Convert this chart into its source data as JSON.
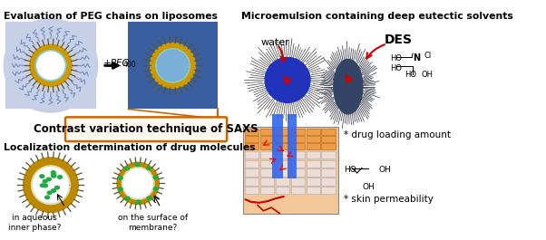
{
  "top_left_title": "Evaluation of PEG chains on liposomes",
  "top_right_title": "Microemulsion containing deep eutectic solvents",
  "bottom_left_title": "Localization determination of drug molecules",
  "center_box_text": "Contrast variation technique of SAXS",
  "arrow_label": "+PEG",
  "arrow_sub": "400",
  "water_label": "water",
  "des_label": "DES",
  "drug_loading_label": "* drug loading amount",
  "skin_perm_label": "* skin permeability",
  "aqueous_label": "in aqueous\ninner phase?",
  "membrane_label": "on the surface of\nmembrane?",
  "bg_color": "#ffffff",
  "liposome1_bg": "#c8d0e8",
  "liposome2_bg": "#3a5fa0",
  "box_border": "#cc6600",
  "box_fill": "#fff8f0",
  "green_drug": "#22aa44",
  "gold_membrane": "#cc9900",
  "teal_inner": "#88cccc",
  "text_color": "#000000",
  "red_color": "#cc0000",
  "figsize": [
    6.02,
    2.65
  ],
  "dpi": 100
}
